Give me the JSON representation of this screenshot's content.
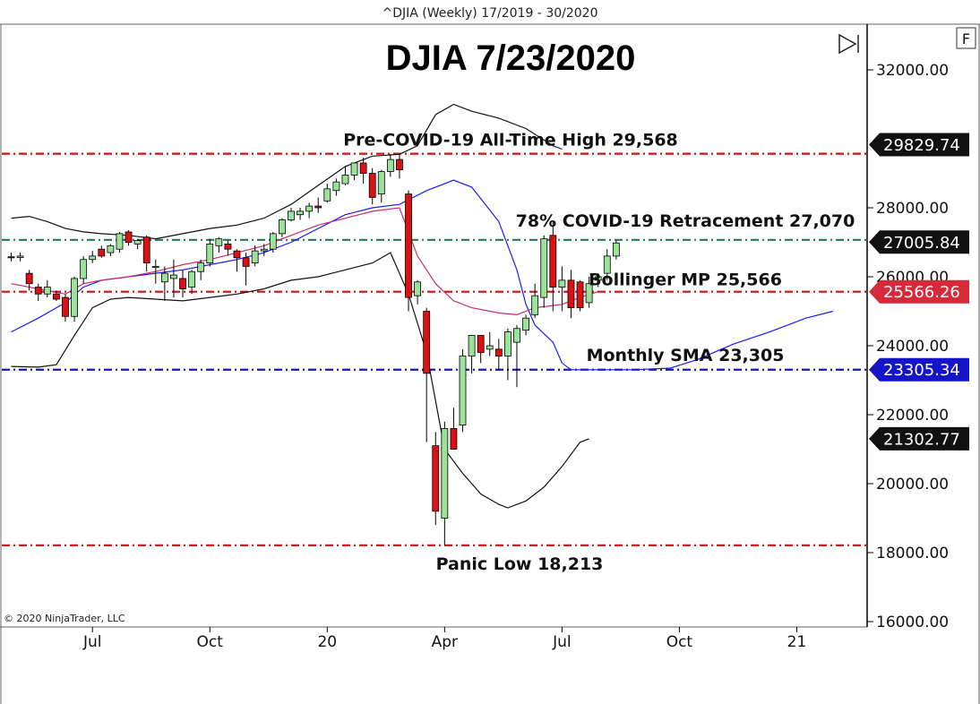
{
  "header": {
    "text": "^DJIA (Weekly)  17/2019 - 30/2020"
  },
  "copyright": "© 2020 NinjaTrader, LLC",
  "controls": {
    "f_button": "F",
    "scroll_icon": "play-to-end-icon"
  },
  "chart_data": {
    "type": "candlestick",
    "title": "DJIA 7/23/2020",
    "xlabel": "",
    "ylabel": "",
    "ylim": [
      15750,
      33400
    ],
    "xlim": [
      -0.5,
      84.5
    ],
    "grid": false,
    "x_ticks": [
      {
        "label": "Jul",
        "x": 9
      },
      {
        "label": "Oct",
        "x": 22
      },
      {
        "label": "20",
        "x": 35
      },
      {
        "label": "Apr",
        "x": 48
      },
      {
        "label": "Jul",
        "x": 61
      },
      {
        "label": "Oct",
        "x": 74
      },
      {
        "label": "21",
        "x": 87
      }
    ],
    "y_ticks": [
      {
        "label": "32000.00",
        "value": 32000
      },
      {
        "label": "28000.00",
        "value": 28000
      },
      {
        "label": "26000.00",
        "value": 26000
      },
      {
        "label": "24000.00",
        "value": 24000
      },
      {
        "label": "22000.00",
        "value": 22000
      },
      {
        "label": "20000.00",
        "value": 20000
      },
      {
        "label": "18000.00",
        "value": 18000
      },
      {
        "label": "16000.00",
        "value": 16000
      }
    ],
    "candles": [
      {
        "x": 0,
        "o": 26580,
        "h": 26700,
        "l": 26450,
        "c": 26560
      },
      {
        "x": 1,
        "o": 26560,
        "h": 26700,
        "l": 26450,
        "c": 26600
      },
      {
        "x": 2,
        "o": 26100,
        "h": 26200,
        "l": 25600,
        "c": 25800
      },
      {
        "x": 3,
        "o": 25700,
        "h": 25800,
        "l": 25300,
        "c": 25500
      },
      {
        "x": 4,
        "o": 25500,
        "h": 25900,
        "l": 25400,
        "c": 25700
      },
      {
        "x": 5,
        "o": 25500,
        "h": 25600,
        "l": 25300,
        "c": 25350
      },
      {
        "x": 6,
        "o": 25400,
        "h": 25500,
        "l": 24700,
        "c": 24850
      },
      {
        "x": 7,
        "o": 24850,
        "h": 26000,
        "l": 24700,
        "c": 25950
      },
      {
        "x": 8,
        "o": 25950,
        "h": 26600,
        "l": 25800,
        "c": 26500
      },
      {
        "x": 9,
        "o": 26500,
        "h": 26750,
        "l": 26400,
        "c": 26600
      },
      {
        "x": 10,
        "o": 26800,
        "h": 26900,
        "l": 26550,
        "c": 26600
      },
      {
        "x": 11,
        "o": 26700,
        "h": 26950,
        "l": 26600,
        "c": 26900
      },
      {
        "x": 12,
        "o": 26800,
        "h": 27300,
        "l": 26700,
        "c": 27250
      },
      {
        "x": 13,
        "o": 27300,
        "h": 27350,
        "l": 26900,
        "c": 27000
      },
      {
        "x": 14,
        "o": 26950,
        "h": 27100,
        "l": 26800,
        "c": 27050
      },
      {
        "x": 15,
        "o": 27150,
        "h": 27200,
        "l": 26150,
        "c": 26400
      },
      {
        "x": 16,
        "o": 26300,
        "h": 26500,
        "l": 25800,
        "c": 26300
      },
      {
        "x": 17,
        "o": 25850,
        "h": 26300,
        "l": 25300,
        "c": 26100
      },
      {
        "x": 18,
        "o": 25950,
        "h": 26500,
        "l": 25400,
        "c": 26050
      },
      {
        "x": 19,
        "o": 25950,
        "h": 26200,
        "l": 25400,
        "c": 25650
      },
      {
        "x": 20,
        "o": 25700,
        "h": 26200,
        "l": 25500,
        "c": 26150
      },
      {
        "x": 21,
        "o": 26150,
        "h": 26500,
        "l": 25900,
        "c": 26400
      },
      {
        "x": 22,
        "o": 26400,
        "h": 27100,
        "l": 26300,
        "c": 26950
      },
      {
        "x": 23,
        "o": 26900,
        "h": 27150,
        "l": 26700,
        "c": 27100
      },
      {
        "x": 24,
        "o": 26950,
        "h": 27050,
        "l": 26600,
        "c": 26800
      },
      {
        "x": 25,
        "o": 26750,
        "h": 26800,
        "l": 26150,
        "c": 26550
      },
      {
        "x": 26,
        "o": 26550,
        "h": 26700,
        "l": 25750,
        "c": 26300
      },
      {
        "x": 27,
        "o": 26400,
        "h": 26900,
        "l": 26300,
        "c": 26750
      },
      {
        "x": 28,
        "o": 26750,
        "h": 26950,
        "l": 26600,
        "c": 26800
      },
      {
        "x": 29,
        "o": 26800,
        "h": 27300,
        "l": 26700,
        "c": 27250
      },
      {
        "x": 30,
        "o": 27250,
        "h": 27700,
        "l": 27150,
        "c": 27650
      },
      {
        "x": 31,
        "o": 27650,
        "h": 28000,
        "l": 27600,
        "c": 27900
      },
      {
        "x": 32,
        "o": 27800,
        "h": 28000,
        "l": 27650,
        "c": 27900
      },
      {
        "x": 33,
        "o": 27900,
        "h": 28150,
        "l": 27700,
        "c": 28050
      },
      {
        "x": 34,
        "o": 28050,
        "h": 28300,
        "l": 27850,
        "c": 28000
      },
      {
        "x": 35,
        "o": 28200,
        "h": 28700,
        "l": 28150,
        "c": 28550
      },
      {
        "x": 36,
        "o": 28500,
        "h": 28850,
        "l": 28350,
        "c": 28750
      },
      {
        "x": 37,
        "o": 28700,
        "h": 29200,
        "l": 28650,
        "c": 28950
      },
      {
        "x": 38,
        "o": 28950,
        "h": 29300,
        "l": 28800,
        "c": 29300
      },
      {
        "x": 39,
        "o": 29300,
        "h": 29450,
        "l": 28700,
        "c": 29000
      },
      {
        "x": 40,
        "o": 29000,
        "h": 29150,
        "l": 28100,
        "c": 28300
      },
      {
        "x": 41,
        "o": 28400,
        "h": 29100,
        "l": 28150,
        "c": 29050
      },
      {
        "x": 42,
        "o": 29050,
        "h": 29560,
        "l": 28900,
        "c": 29400
      },
      {
        "x": 43,
        "o": 29400,
        "h": 29568,
        "l": 28850,
        "c": 29100
      },
      {
        "x": 44,
        "o": 28400,
        "h": 28500,
        "l": 25000,
        "c": 25400
      },
      {
        "x": 45,
        "o": 25450,
        "h": 25900,
        "l": 25200,
        "c": 25850
      },
      {
        "x": 46,
        "o": 25000,
        "h": 25100,
        "l": 21200,
        "c": 23200
      },
      {
        "x": 47,
        "o": 21100,
        "h": 21500,
        "l": 18800,
        "c": 19200
      },
      {
        "x": 48,
        "o": 19000,
        "h": 21800,
        "l": 18213,
        "c": 21600
      },
      {
        "x": 49,
        "o": 21600,
        "h": 22200,
        "l": 21000,
        "c": 21000
      },
      {
        "x": 50,
        "o": 21700,
        "h": 23900,
        "l": 21500,
        "c": 23700
      },
      {
        "x": 51,
        "o": 23700,
        "h": 24300,
        "l": 23200,
        "c": 24300
      },
      {
        "x": 52,
        "o": 24300,
        "h": 24300,
        "l": 23500,
        "c": 23800
      },
      {
        "x": 53,
        "o": 23900,
        "h": 24400,
        "l": 23700,
        "c": 24000
      },
      {
        "x": 54,
        "o": 23900,
        "h": 24200,
        "l": 23300,
        "c": 23700
      },
      {
        "x": 55,
        "o": 23700,
        "h": 24500,
        "l": 23000,
        "c": 24400
      },
      {
        "x": 56,
        "o": 24100,
        "h": 24600,
        "l": 22800,
        "c": 24500
      },
      {
        "x": 57,
        "o": 24450,
        "h": 24900,
        "l": 24300,
        "c": 24800
      },
      {
        "x": 58,
        "o": 24900,
        "h": 25800,
        "l": 24800,
        "c": 25450
      },
      {
        "x": 59,
        "o": 25400,
        "h": 27200,
        "l": 25100,
        "c": 27100
      },
      {
        "x": 60,
        "o": 27200,
        "h": 27600,
        "l": 25000,
        "c": 25700
      },
      {
        "x": 61,
        "o": 25700,
        "h": 26300,
        "l": 25000,
        "c": 25900
      },
      {
        "x": 62,
        "o": 25900,
        "h": 26200,
        "l": 24800,
        "c": 25100
      },
      {
        "x": 63,
        "o": 25850,
        "h": 25900,
        "l": 25000,
        "c": 25100
      },
      {
        "x": 64,
        "o": 25250,
        "h": 26000,
        "l": 25100,
        "c": 25800
      },
      {
        "x": 65,
        "o": 25900,
        "h": 26100,
        "l": 25700,
        "c": 26000
      },
      {
        "x": 66,
        "o": 26100,
        "h": 26800,
        "l": 25900,
        "c": 26600
      },
      {
        "x": 67,
        "o": 26600,
        "h": 27050,
        "l": 26500,
        "c": 26980
      }
    ],
    "series": [
      {
        "name": "",
        "color": "#1a1aff",
        "points": [
          [
            0,
            24400
          ],
          [
            3,
            24800
          ],
          [
            6,
            25250
          ],
          [
            8,
            25700
          ],
          [
            10,
            25900
          ],
          [
            13,
            26000
          ],
          [
            16,
            26100
          ],
          [
            19,
            26200
          ],
          [
            22,
            26350
          ],
          [
            25,
            26500
          ],
          [
            28,
            26700
          ],
          [
            31,
            27000
          ],
          [
            34,
            27400
          ],
          [
            37,
            27800
          ],
          [
            40,
            28000
          ],
          [
            43,
            28100
          ],
          [
            46,
            28500
          ],
          [
            49,
            28800
          ],
          [
            51,
            28600
          ],
          [
            54,
            27600
          ],
          [
            56,
            26200
          ],
          [
            57,
            25200
          ],
          [
            58,
            24600
          ],
          [
            60,
            24100
          ],
          [
            61,
            23500
          ],
          [
            62,
            23305
          ],
          [
            65,
            23305
          ],
          [
            69,
            23305
          ],
          [
            73,
            23350
          ],
          [
            76,
            23600
          ],
          [
            80,
            24050
          ],
          [
            84,
            24400
          ],
          [
            88,
            24800
          ],
          [
            91,
            25000
          ]
        ]
      },
      {
        "name": "",
        "color": "#cc2a6e",
        "points": [
          [
            0,
            25800
          ],
          [
            4,
            25600
          ],
          [
            6,
            25500
          ],
          [
            8,
            25800
          ],
          [
            10,
            25900
          ],
          [
            13,
            26000
          ],
          [
            16,
            26150
          ],
          [
            19,
            26350
          ],
          [
            22,
            26500
          ],
          [
            25,
            26700
          ],
          [
            28,
            26900
          ],
          [
            31,
            27200
          ],
          [
            34,
            27500
          ],
          [
            37,
            27700
          ],
          [
            40,
            27900
          ],
          [
            43,
            28000
          ],
          [
            45,
            26600
          ],
          [
            47,
            25800
          ],
          [
            49,
            25300
          ],
          [
            51,
            25100
          ],
          [
            54,
            24950
          ],
          [
            56,
            24900
          ],
          [
            58,
            25100
          ],
          [
            61,
            25200
          ],
          [
            63,
            25400
          ],
          [
            65,
            25566
          ]
        ]
      },
      {
        "name": "",
        "color": "#111111",
        "points": [
          [
            0,
            27700
          ],
          [
            2,
            27750
          ],
          [
            4,
            27600
          ],
          [
            6,
            27400
          ],
          [
            8,
            27300
          ],
          [
            10,
            27250
          ],
          [
            13,
            27200
          ],
          [
            16,
            27100
          ],
          [
            19,
            27250
          ],
          [
            22,
            27400
          ],
          [
            25,
            27500
          ],
          [
            28,
            27700
          ],
          [
            31,
            28100
          ],
          [
            34,
            28650
          ],
          [
            37,
            29200
          ],
          [
            40,
            29500
          ],
          [
            43,
            29550
          ],
          [
            45,
            29800
          ],
          [
            47,
            30700
          ],
          [
            49,
            31000
          ],
          [
            51,
            30800
          ],
          [
            54,
            30600
          ],
          [
            57,
            30300
          ],
          [
            60,
            29800
          ],
          [
            61,
            29700
          ]
        ]
      },
      {
        "name": "",
        "color": "#111111",
        "points": [
          [
            0,
            23400
          ],
          [
            3,
            23380
          ],
          [
            5,
            23450
          ],
          [
            7,
            24300
          ],
          [
            9,
            25100
          ],
          [
            11,
            25350
          ],
          [
            13,
            25400
          ],
          [
            16,
            25350
          ],
          [
            19,
            25300
          ],
          [
            22,
            25400
          ],
          [
            25,
            25500
          ],
          [
            28,
            25650
          ],
          [
            31,
            25900
          ],
          [
            34,
            26000
          ],
          [
            37,
            26200
          ],
          [
            40,
            26400
          ],
          [
            42,
            26700
          ],
          [
            44,
            25500
          ],
          [
            46,
            23800
          ],
          [
            48,
            21000
          ],
          [
            50,
            20300
          ],
          [
            52,
            19700
          ],
          [
            54,
            19400
          ],
          [
            55,
            19300
          ],
          [
            57,
            19500
          ],
          [
            59,
            19900
          ],
          [
            61,
            20500
          ],
          [
            63,
            21200
          ],
          [
            64,
            21300
          ]
        ]
      }
    ],
    "hlines": [
      {
        "value": 29568,
        "color": "#d01010",
        "label": "Pre-COVID-19 All-Time High 29,568"
      },
      {
        "value": 27070,
        "color": "#1e7a5a",
        "label": "78% COVID-19 Retracement 27,070"
      },
      {
        "value": 25566,
        "color": "#d01010",
        "label": "Bollinger MP 25,566"
      },
      {
        "value": 23305,
        "color": "#1414c8",
        "label": "Monthly SMA 23,305"
      },
      {
        "value": 18213,
        "color": "#d01010",
        "label": "Panic Low 18,213"
      }
    ],
    "price_badges": [
      {
        "value": 29829.74,
        "label": "29829.74",
        "bg": "#111111"
      },
      {
        "value": 27005.84,
        "label": "27005.84",
        "bg": "#111111"
      },
      {
        "value": 25566.26,
        "label": "25566.26",
        "bg": "#d42a3a"
      },
      {
        "value": 23305.34,
        "label": "23305.34",
        "bg": "#1414c8"
      },
      {
        "value": 21302.77,
        "label": "21302.77",
        "bg": "#111111"
      }
    ],
    "colors": {
      "up": "#9be39b",
      "down": "#dd1111",
      "axis": "#000000"
    }
  }
}
